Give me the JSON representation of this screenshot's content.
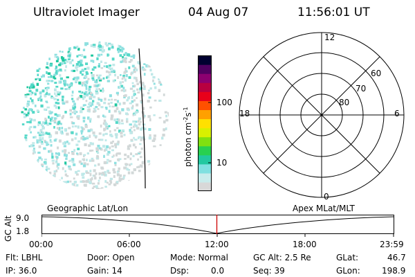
{
  "header": {
    "instrument": "Ultraviolet Imager",
    "date": "04 Aug 07",
    "time": "11:56:01 UT"
  },
  "colorbar": {
    "label": "photon cm",
    "label_exp1": "-2",
    "label_mid": "s",
    "label_exp2": "-1",
    "ticks": [
      "100",
      "10"
    ],
    "log_scale": true,
    "colors": [
      "#d8d8d8",
      "#c8ecec",
      "#7fe0e0",
      "#22c8a0",
      "#28d050",
      "#80e010",
      "#d8f000",
      "#ffe000",
      "#ffa000",
      "#ff5000",
      "#e8001a",
      "#b80040",
      "#8c0070",
      "#500060",
      "#000030"
    ]
  },
  "polar": {
    "hours": [
      "12",
      "18",
      "6",
      "0"
    ],
    "latitudes": [
      "60",
      "70",
      "80"
    ]
  },
  "timeline": {
    "ylabel": "GC Alt",
    "y_ticks": [
      "9.0",
      "1.8"
    ],
    "left_label": "Geographic Lat/Lon",
    "right_label": "Apex MLat/MLT",
    "x_ticks": [
      "00:00",
      "06:00",
      "12:00",
      "18:00",
      "23:59"
    ],
    "current_time_color": "#cc0000",
    "current_time_hours": 11.93
  },
  "status": {
    "filter": "Flt: LBHL",
    "ip": "IP: 36.0",
    "door": "Door: Open",
    "gain": "Gain: 14",
    "mode": "Mode: Normal",
    "dsp_label": "Dsp:",
    "dsp_value": "0.0",
    "gc_alt": "GC Alt: 2.5 Re",
    "seq": "Seq: 39",
    "glat_label": "GLat:",
    "glat_value": "46.7",
    "glon_label": "GLon:",
    "glon_value": "198.9"
  },
  "image": {
    "colors": [
      "#d2d8d8",
      "#bfe8e8",
      "#8fe0e0",
      "#55d8c8",
      "#20c8a0"
    ],
    "terminator_color": "#000000"
  }
}
